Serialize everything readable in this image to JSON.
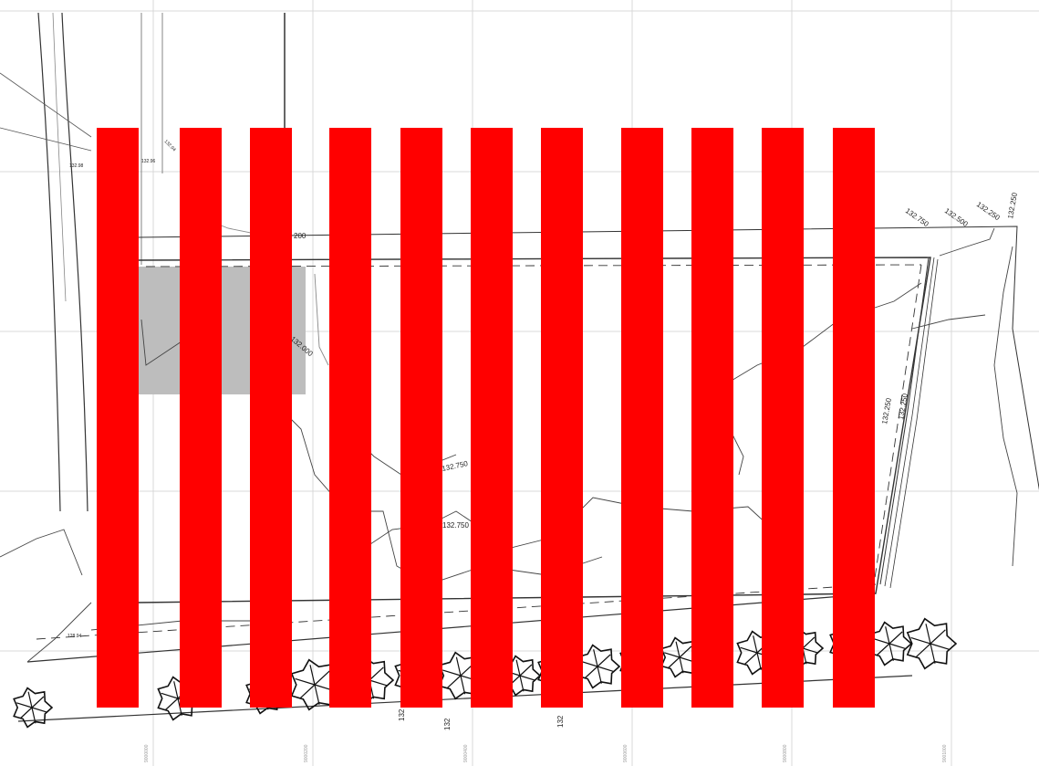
{
  "drawing": {
    "elevation_labels": {
      "top_right": [
        "132.750",
        "132.500",
        "132.250",
        "132.250"
      ],
      "top_mid": "200",
      "mid_left": "132.000",
      "center": "132.750",
      "lower_center": "132.750",
      "right_vertical": [
        "132.250",
        "132.250"
      ],
      "top_left_spot_1": "132.98",
      "top_left_spot_2": "132.96",
      "top_left_spot_3": "132.94",
      "bottom_left_spot": "128.94",
      "bottom_row": [
        "132",
        "132",
        "132"
      ]
    },
    "grid_axis_labels": [
      "9000000",
      "9000200",
      "9000400",
      "9000600",
      "9000800",
      "9001000",
      "9001200"
    ],
    "colors": {
      "redaction_bar": "#ff0000",
      "gray_patch": "#bdbdbd",
      "grid": "#d6d6d6",
      "line": "#333333"
    },
    "redaction_bar_count": 11
  }
}
